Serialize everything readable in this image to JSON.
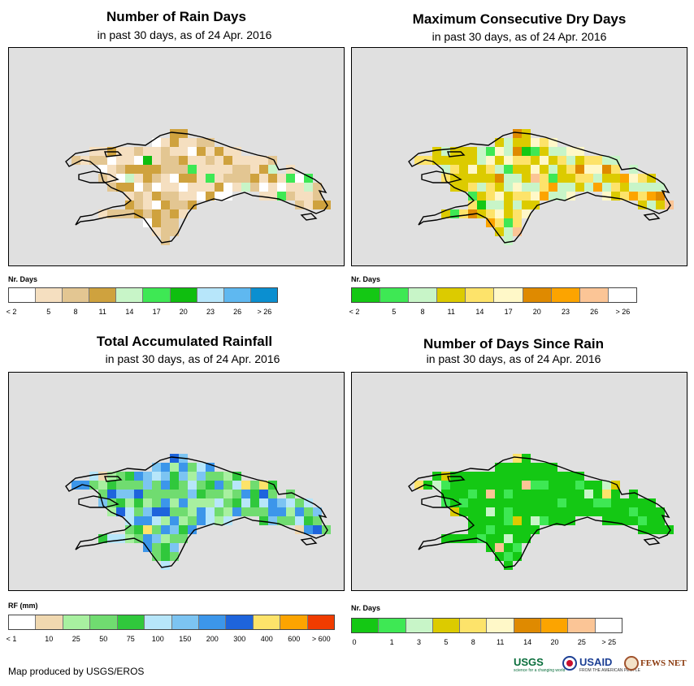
{
  "chart_data": [
    {
      "type": "heatmap",
      "title": "Number of Rain Days",
      "subtitle": "in past 30 days, as of 24 Apr. 2016",
      "legend_title": "Nr. Days",
      "legend_labels": [
        "< 2",
        "5",
        "8",
        "11",
        "14",
        "17",
        "20",
        "23",
        "26",
        "> 26"
      ],
      "legend_colors": [
        "#ffffff",
        "#f5dfc0",
        "#e3c692",
        "#cfa23e",
        "#c8f5c8",
        "#3ee854",
        "#0fbe0f",
        "#b7e6fa",
        "#5fb8f0",
        "#0b8fd0"
      ],
      "region_class_pattern": "dominant 5-11 days across Hispaniola, 14-20 days in south-west Haiti"
    },
    {
      "type": "heatmap",
      "title": "Maximum Consecutive Dry Days",
      "subtitle": "in past 30 days, as of 24 Apr. 2016",
      "legend_title": "Nr. Days",
      "legend_labels": [
        "< 2",
        "5",
        "8",
        "11",
        "14",
        "17",
        "20",
        "23",
        "26",
        "> 26"
      ],
      "legend_colors": [
        "#14c814",
        "#3ee854",
        "#c8f5c8",
        "#dccb00",
        "#fde36a",
        "#fff8c8",
        "#df8a00",
        "#fca400",
        "#fbc596",
        "#ffffff"
      ],
      "region_class_pattern": "mostly 8-17 days, pockets of 20-23 days"
    },
    {
      "type": "heatmap",
      "title": "Total Accumulated Rainfall",
      "subtitle": "in past 30 days, as of 24 Apr. 2016",
      "legend_title": "RF (mm)",
      "legend_labels": [
        "< 1",
        "10",
        "25",
        "50",
        "75",
        "100",
        "150",
        "200",
        "300",
        "400",
        "600",
        "> 600"
      ],
      "legend_colors": [
        "#ffffff",
        "#f0d8b0",
        "#a8f0a0",
        "#70dc70",
        "#30c83c",
        "#b7e6fa",
        "#7cc4f2",
        "#3c96ea",
        "#1e64dc",
        "#fde36a",
        "#fca400",
        "#f03c00"
      ],
      "region_class_pattern": "25-75 mm widely, 150-300 mm over central Haiti / western Dominican Republic"
    },
    {
      "type": "heatmap",
      "title": "Number of Days Since Rain",
      "subtitle": "in past 30 days, as of 24 Apr. 2016",
      "legend_title": "Nr. Days",
      "legend_labels": [
        "0",
        "1",
        "3",
        "5",
        "8",
        "11",
        "14",
        "20",
        "25",
        "> 25"
      ],
      "legend_colors": [
        "#14c814",
        "#3ee854",
        "#c8f5c8",
        "#dccb00",
        "#fde36a",
        "#fff8c8",
        "#df8a00",
        "#fca400",
        "#fbc596",
        "#ffffff"
      ],
      "region_class_pattern": "0-1 days almost everywhere"
    }
  ],
  "credit": "Map produced by USGS/EROS",
  "logos": {
    "usgs": "USGS",
    "usgs_tagline": "science for a changing world",
    "usaid": "USAID",
    "usaid_tagline": "FROM THE AMERICAN PEOPLE",
    "fewsnet": "FEWS NET"
  }
}
